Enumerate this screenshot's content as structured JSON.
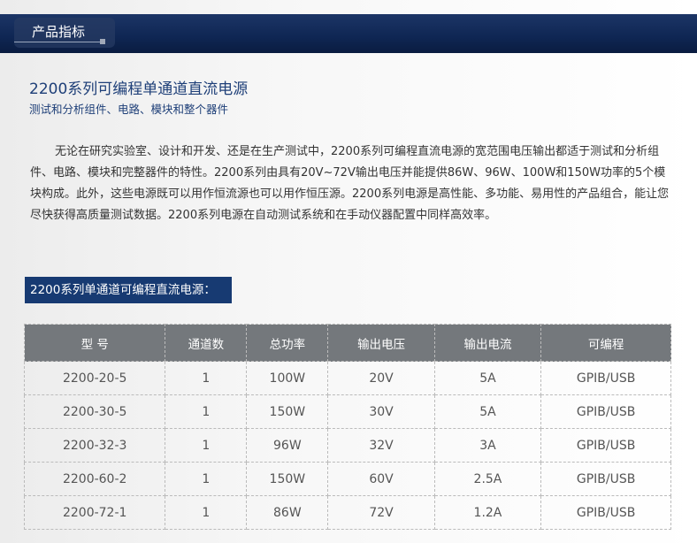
{
  "banner": {
    "label": "产品指标"
  },
  "title": "2200系列可编程单通道直流电源",
  "subtitle": "测试和分析组件、电路、模块和整个器件",
  "description": "无论在研究实验室、设计和开发、还是在生产测试中，2200系列可编程直流电源的宽范围电压输出都适于测试和分析组件、电路、模块和完整器件的特性。2200系列由具有20V~72V输出电压并能提供86W、96W、100W和150W功率的5个模块构成。此外，这些电源既可以用作恒流源也可以用作恒压源。2200系列电源是高性能、多功能、易用性的产品组合，能让您尽快获得高质量测试数据。2200系列电源在自动测试系统和在手动仪器配置中同样高效率。",
  "section_label": "2200系列单通道可编程直流电源：",
  "table": {
    "headers": [
      "型 号",
      "通道数",
      "总功率",
      "输出电压",
      "输出电流",
      "可编程"
    ],
    "rows": [
      [
        "2200-20-5",
        "1",
        "100W",
        "20V",
        "5A",
        "GPIB/USB"
      ],
      [
        "2200-30-5",
        "1",
        "150W",
        "30V",
        "5A",
        "GPIB/USB"
      ],
      [
        "2200-32-3",
        "1",
        "96W",
        "32V",
        "3A",
        "GPIB/USB"
      ],
      [
        "2200-60-2",
        "1",
        "150W",
        "60V",
        "2.5A",
        "GPIB/USB"
      ],
      [
        "2200-72-1",
        "1",
        "86W",
        "72V",
        "1.2A",
        "GPIB/USB"
      ]
    ]
  }
}
